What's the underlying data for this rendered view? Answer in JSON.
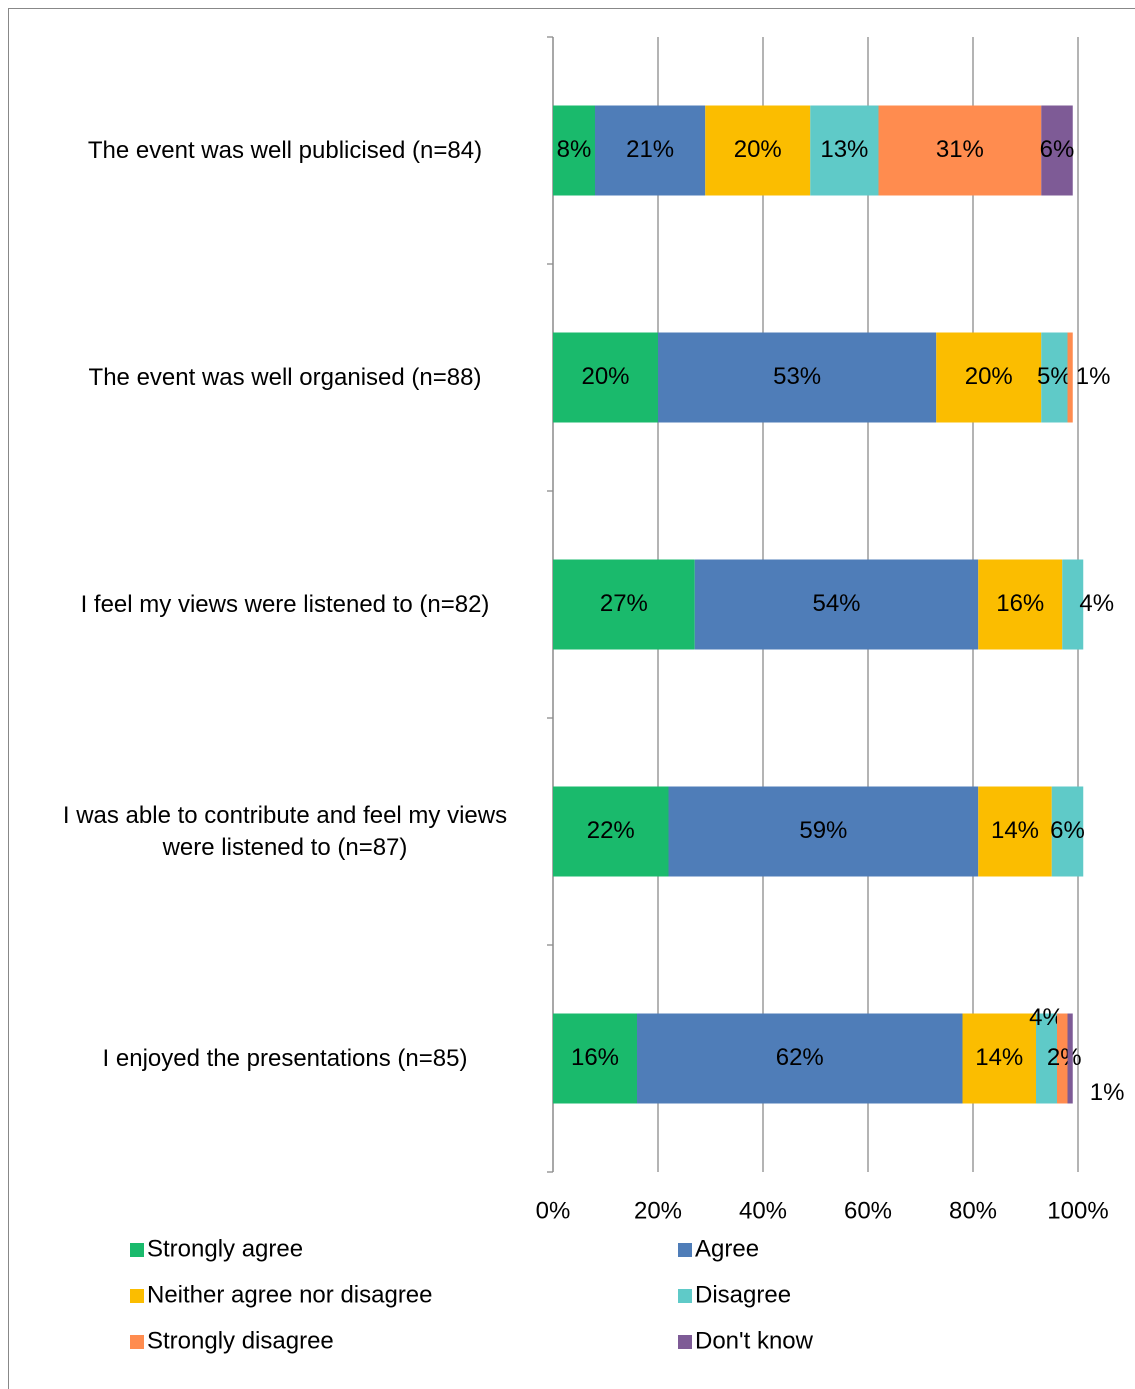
{
  "chart_data": {
    "type": "stacked_bar_horizontal",
    "categories": [
      "The event was well publicised (n=84)",
      "The event was well organised (n=88)",
      "I feel my views were listened to (n=82)",
      "I was able to contribute and feel my views were listened to (n=87)",
      "I enjoyed the presentations (n=85)"
    ],
    "series": [
      {
        "name": "Strongly agree",
        "color": "#1aba6c",
        "values": [
          8,
          20,
          27,
          22,
          16
        ],
        "value_labels": [
          "8%",
          "20%",
          "27%",
          "22%",
          "16%"
        ]
      },
      {
        "name": "Agree",
        "color": "#4f7db8",
        "values": [
          21,
          53,
          54,
          59,
          62
        ],
        "value_labels": [
          "21%",
          "53%",
          "54%",
          "59%",
          "62%"
        ]
      },
      {
        "name": "Neither agree nor disagree",
        "color": "#fbbd00",
        "values": [
          20,
          20,
          16,
          14,
          14
        ],
        "value_labels": [
          "20%",
          "20%",
          "16%",
          "14%",
          "14%"
        ]
      },
      {
        "name": "Disagree",
        "color": "#5fcac8",
        "values": [
          13,
          5,
          4,
          6,
          4
        ],
        "value_labels": [
          "13%",
          "5%",
          "4%",
          "6%",
          "4%"
        ]
      },
      {
        "name": "Strongly disagree",
        "color": "#ff8c4f",
        "values": [
          31,
          1,
          null,
          null,
          2
        ],
        "value_labels": [
          "31%",
          "1%",
          null,
          null,
          "2%"
        ]
      },
      {
        "name": "Don't know",
        "color": "#7e5b96",
        "values": [
          6,
          null,
          null,
          null,
          1
        ],
        "value_labels": [
          "6%",
          null,
          null,
          null,
          "1%"
        ]
      }
    ],
    "xlim": [
      0,
      100
    ],
    "xticks": [
      {
        "value": 0,
        "label": "0%"
      },
      {
        "value": 20,
        "label": "20%"
      },
      {
        "value": 40,
        "label": "40%"
      },
      {
        "value": 60,
        "label": "60%"
      },
      {
        "value": 80,
        "label": "80%"
      },
      {
        "value": 100,
        "label": "100%"
      }
    ],
    "grid": true
  }
}
